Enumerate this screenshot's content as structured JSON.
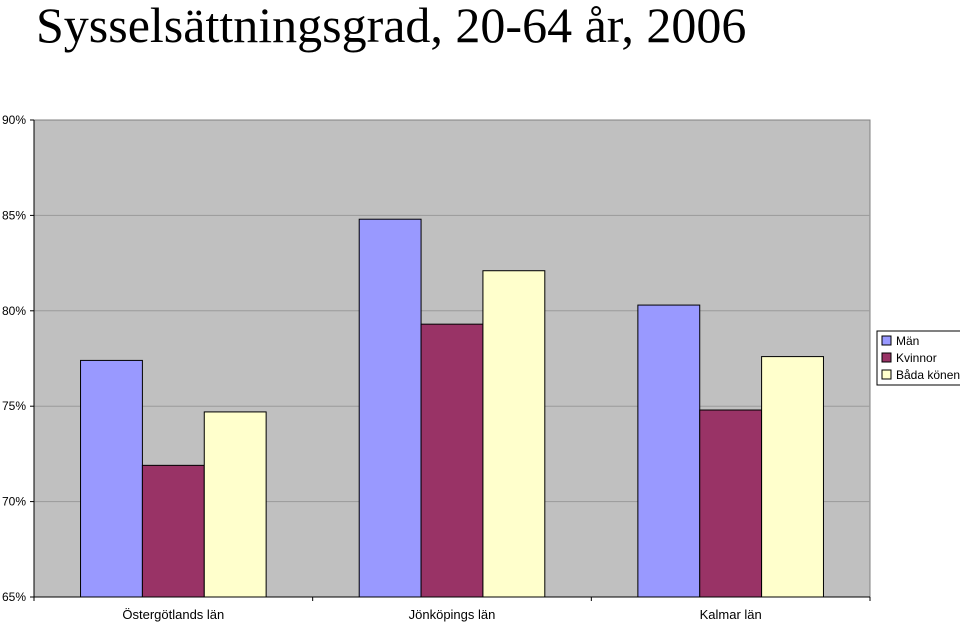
{
  "chart_data": {
    "type": "bar",
    "title": "Sysselsättningsgrad, 20-64 år, 2006",
    "categories": [
      "Östergötlands län",
      "Jönköpings län",
      "Kalmar län"
    ],
    "series": [
      {
        "name": "Män",
        "values": [
          77.4,
          84.8,
          80.3
        ],
        "color": "#9999ff"
      },
      {
        "name": "Kvinnor",
        "values": [
          71.9,
          79.3,
          74.8
        ],
        "color": "#993366"
      },
      {
        "name": "Båda könen",
        "values": [
          74.7,
          82.1,
          77.6
        ],
        "color": "#ffffcc"
      }
    ],
    "ylim": [
      65,
      90
    ],
    "yticks": [
      {
        "value": 90,
        "label": "90%"
      },
      {
        "value": 85,
        "label": "85%"
      },
      {
        "value": 80,
        "label": "80%"
      },
      {
        "value": 75,
        "label": "75%"
      },
      {
        "value": 70,
        "label": "70%"
      },
      {
        "value": 65,
        "label": "65%"
      }
    ],
    "xlabel": "",
    "ylabel": "",
    "grid": true,
    "legend_position": "right",
    "plot_background": "#c0c0c0"
  }
}
